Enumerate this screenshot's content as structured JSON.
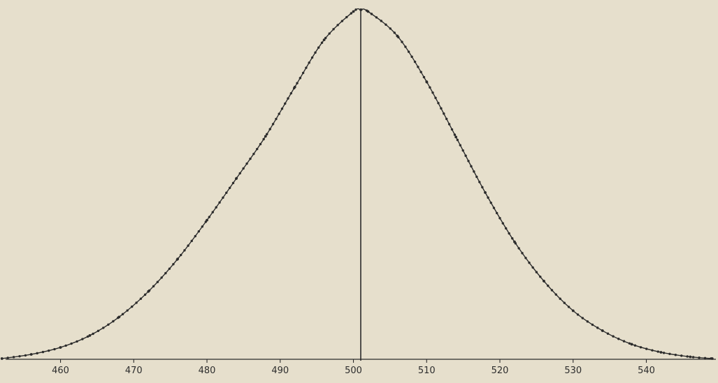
{
  "chart_data": {
    "type": "line",
    "title": "",
    "xlabel": "",
    "ylabel": "",
    "xlim": [
      452.5,
      549.5
    ],
    "ylim": [
      0,
      1
    ],
    "x_ticks": [
      460,
      470,
      480,
      490,
      500,
      510,
      520,
      530,
      540
    ],
    "x_tick_labels": [
      "460",
      "470",
      "480",
      "490",
      "500",
      "510",
      "520",
      "530",
      "540"
    ],
    "grid": false,
    "legend": "none",
    "mean": 501,
    "series": [
      {
        "style": "dotted-curve",
        "x": [
          452,
          456,
          460,
          464,
          468,
          472,
          476,
          480,
          484,
          488,
          492,
          496,
          500,
          501,
          502,
          506,
          510,
          514,
          518,
          522,
          526,
          530,
          534,
          538,
          542,
          546,
          549
        ],
        "y": [
          0.002,
          0.014,
          0.034,
          0.068,
          0.121,
          0.194,
          0.287,
          0.398,
          0.517,
          0.638,
          0.779,
          0.914,
          0.995,
          1.0,
          0.995,
          0.925,
          0.794,
          0.636,
          0.477,
          0.336,
          0.224,
          0.139,
          0.082,
          0.043,
          0.02,
          0.007,
          0.002
        ]
      }
    ],
    "colors": {
      "background": "#e6dfcc",
      "ink": "#2b2b2b"
    }
  }
}
